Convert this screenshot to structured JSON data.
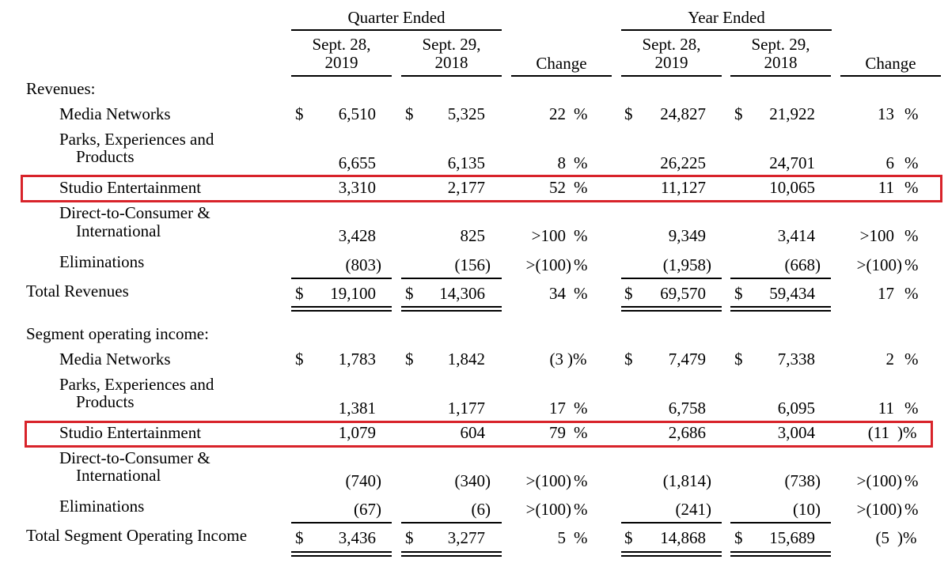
{
  "header": {
    "quarter_ended": "Quarter Ended",
    "year_ended": "Year Ended",
    "col1": [
      "Sept. 28,",
      "2019"
    ],
    "col2": [
      "Sept. 29,",
      "2018"
    ],
    "col3": "Change",
    "col4": [
      "Sept. 28,",
      "2019"
    ],
    "col5": [
      "Sept. 29,",
      "2018"
    ],
    "col6": "Change"
  },
  "revenues": {
    "section_label": "Revenues:",
    "rows": [
      {
        "label": "Media Networks",
        "d1": "$",
        "q2019": "6,510",
        "d2": "$",
        "q2018": "5,325",
        "qchg": "22",
        "qsuf": "%",
        "d3": "$",
        "y2019": "24,827",
        "d4": "$",
        "y2018": "21,922",
        "ychg": "13",
        "ysuf": "%"
      },
      {
        "label1": "Parks, Experiences and",
        "label2": "Products",
        "q2019": "6,655",
        "q2018": "6,135",
        "qchg": "8",
        "qsuf": "%",
        "y2019": "26,225",
        "y2018": "24,701",
        "ychg": "6",
        "ysuf": "%"
      },
      {
        "label": "Studio Entertainment",
        "q2019": "3,310",
        "q2018": "2,177",
        "qchg": "52",
        "qsuf": "%",
        "y2019": "11,127",
        "y2018": "10,065",
        "ychg": "11",
        "ysuf": "%"
      },
      {
        "label1": "Direct-to-Consumer &",
        "label2": "International",
        "q2019": "3,428",
        "q2018": "825",
        "qchg": ">100",
        "qsuf": "%",
        "y2019": "9,349",
        "y2018": "3,414",
        "ychg": ">100",
        "ysuf": "%"
      },
      {
        "label": "Eliminations",
        "q2019": "(803)",
        "q2018": "(156)",
        "qchg": ">(100)",
        "qsuf": "%",
        "y2019": "(1,958)",
        "y2018": "(668)",
        "ychg": ">(100)",
        "ysuf": "%"
      }
    ],
    "total": {
      "label": "Total Revenues",
      "d1": "$",
      "q2019": "19,100",
      "d2": "$",
      "q2018": "14,306",
      "qchg": "34",
      "qsuf": "%",
      "d3": "$",
      "y2019": "69,570",
      "d4": "$",
      "y2018": "59,434",
      "ychg": "17",
      "ysuf": "%"
    }
  },
  "segment": {
    "section_label": "Segment operating income:",
    "rows": [
      {
        "label": "Media Networks",
        "d1": "$",
        "q2019": "1,783",
        "d2": "$",
        "q2018": "1,842",
        "qchg": "(3",
        "qsuf": ")%",
        "d3": "$",
        "y2019": "7,479",
        "d4": "$",
        "y2018": "7,338",
        "ychg": "2",
        "ysuf": "%"
      },
      {
        "label1": "Parks, Experiences and",
        "label2": "Products",
        "q2019": "1,381",
        "q2018": "1,177",
        "qchg": "17",
        "qsuf": "%",
        "y2019": "6,758",
        "y2018": "6,095",
        "ychg": "11",
        "ysuf": "%"
      },
      {
        "label": "Studio Entertainment",
        "q2019": "1,079",
        "q2018": "604",
        "qchg": "79",
        "qsuf": "%",
        "y2019": "2,686",
        "y2018": "3,004",
        "ychg": "(11",
        "ysuf": ")%"
      },
      {
        "label1": "Direct-to-Consumer &",
        "label2": "International",
        "q2019": "(740)",
        "q2018": "(340)",
        "qchg": ">(100)",
        "qsuf": "%",
        "y2019": "(1,814)",
        "y2018": "(738)",
        "ychg": ">(100)",
        "ysuf": "%"
      },
      {
        "label": "Eliminations",
        "q2019": "(67)",
        "q2018": "(6)",
        "qchg": ">(100)",
        "qsuf": "%",
        "y2019": "(241)",
        "y2018": "(10)",
        "ychg": ">(100)",
        "ysuf": "%"
      }
    ],
    "total": {
      "label": "Total Segment Operating Income",
      "d1": "$",
      "q2019": "3,436",
      "d2": "$",
      "q2018": "3,277",
      "qchg": "5",
      "qsuf": "%",
      "d3": "$",
      "y2019": "14,868",
      "d4": "$",
      "y2018": "15,689",
      "ychg": "(5",
      "ysuf": ")%"
    }
  },
  "highlight_color": "#d8232a"
}
